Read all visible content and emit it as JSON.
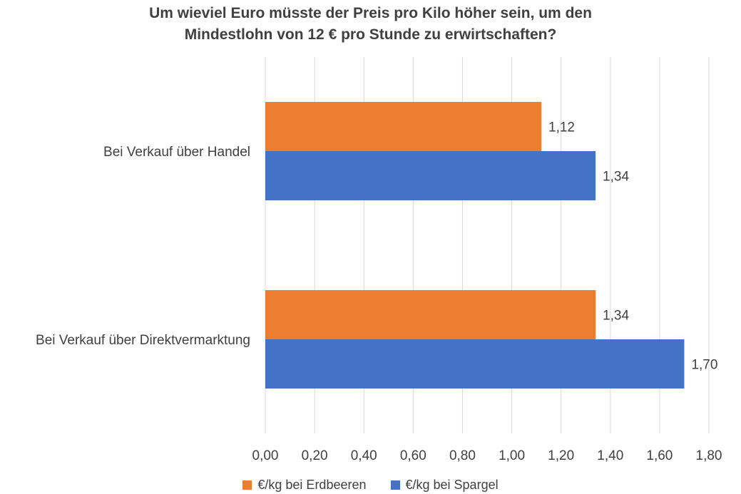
{
  "title_lines": [
    "Um wieviel Euro müsste der Preis pro Kilo höher sein, um den",
    "Mindestlohn von 12 € pro Stunde zu erwirtschaften?"
  ],
  "colors": {
    "erdbeeren": "#ED7D31",
    "spargel": "#4472C4",
    "grid": "#D9D9D9",
    "text": "#404040"
  },
  "chart_data": {
    "type": "bar",
    "orientation": "horizontal",
    "title": "Um wieviel Euro müsste der Preis pro Kilo höher sein, um den Mindestlohn von 12 € pro Stunde zu erwirtschaften?",
    "categories": [
      "Bei Verkauf über Handel",
      "Bei Verkauf über Direktvermarktung"
    ],
    "series": [
      {
        "name": "€/kg bei Erdbeeren",
        "values": [
          1.12,
          1.34
        ],
        "labels": [
          "1,12",
          "1,34"
        ]
      },
      {
        "name": "€/kg bei Spargel",
        "values": [
          1.34,
          1.7
        ],
        "labels": [
          "1,34",
          "1,70"
        ]
      }
    ],
    "xlim": [
      0,
      1.8
    ],
    "xticks": [
      "0,00",
      "0,20",
      "0,40",
      "0,60",
      "0,80",
      "1,00",
      "1,20",
      "1,40",
      "1,60",
      "1,80"
    ],
    "grid": true,
    "legend_position": "bottom"
  }
}
